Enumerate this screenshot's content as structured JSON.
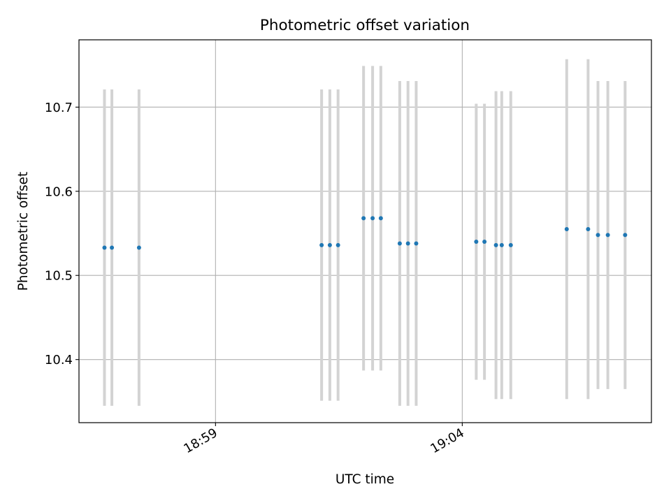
{
  "chart_data": {
    "type": "scatter",
    "title": "Photometric offset variation",
    "xlabel": "UTC time",
    "ylabel": "Photometric offset",
    "x_axis": {
      "range": [
        "18:56:14",
        "19:07:50"
      ],
      "ticks": [
        {
          "time": "18:59",
          "label": "18:59"
        },
        {
          "time": "19:04",
          "label": "19:04"
        }
      ]
    },
    "y_axis": {
      "range": [
        10.325,
        10.78
      ],
      "ticks": [
        {
          "value": 10.4,
          "label": "10.4"
        },
        {
          "value": 10.5,
          "label": "10.5"
        },
        {
          "value": 10.6,
          "label": "10.6"
        },
        {
          "value": 10.7,
          "label": "10.7"
        }
      ]
    },
    "grid": true,
    "series": [
      {
        "marker_color": "#1f77b4",
        "errorbar_color": "#d3d3d3",
        "points": [
          {
            "x": "18:56:45",
            "y": 10.533,
            "err": 0.188
          },
          {
            "x": "18:56:54",
            "y": 10.533,
            "err": 0.188
          },
          {
            "x": "18:57:27",
            "y": 10.533,
            "err": 0.188
          },
          {
            "x": "19:01:09",
            "y": 10.536,
            "err": 0.185
          },
          {
            "x": "19:01:19",
            "y": 10.536,
            "err": 0.185
          },
          {
            "x": "19:01:29",
            "y": 10.536,
            "err": 0.185
          },
          {
            "x": "19:02:00",
            "y": 10.568,
            "err": 0.181
          },
          {
            "x": "19:02:11",
            "y": 10.568,
            "err": 0.181
          },
          {
            "x": "19:02:21",
            "y": 10.568,
            "err": 0.181
          },
          {
            "x": "19:02:44",
            "y": 10.538,
            "err": 0.193
          },
          {
            "x": "19:02:54",
            "y": 10.538,
            "err": 0.193
          },
          {
            "x": "19:03:04",
            "y": 10.538,
            "err": 0.193
          },
          {
            "x": "19:04:17",
            "y": 10.54,
            "err": 0.164
          },
          {
            "x": "19:04:27",
            "y": 10.54,
            "err": 0.164
          },
          {
            "x": "19:04:41",
            "y": 10.536,
            "err": 0.183
          },
          {
            "x": "19:04:48",
            "y": 10.536,
            "err": 0.183
          },
          {
            "x": "19:04:59",
            "y": 10.536,
            "err": 0.183
          },
          {
            "x": "19:06:07",
            "y": 10.555,
            "err": 0.202
          },
          {
            "x": "19:06:33",
            "y": 10.555,
            "err": 0.202
          },
          {
            "x": "19:06:45",
            "y": 10.548,
            "err": 0.183
          },
          {
            "x": "19:06:57",
            "y": 10.548,
            "err": 0.183
          },
          {
            "x": "19:07:18",
            "y": 10.548,
            "err": 0.183
          }
        ]
      }
    ]
  }
}
